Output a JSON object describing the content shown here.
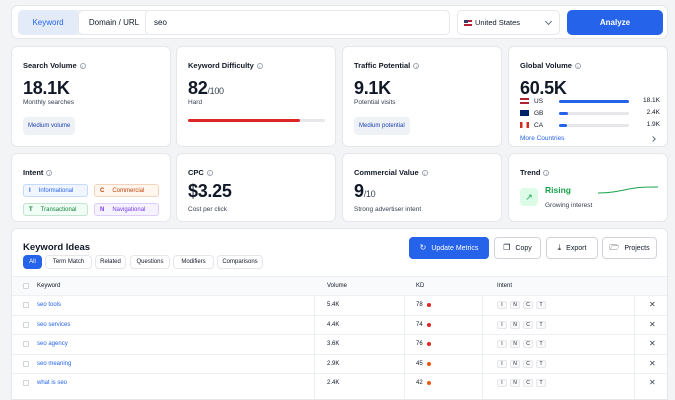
{
  "topbar": {
    "mode_tabs": [
      "Keyword",
      "Domain / URL"
    ],
    "search_value": "seo",
    "country": "United States",
    "analyze_label": "Analyze"
  },
  "search_volume": {
    "title": "Search Volume",
    "value": "18.1K",
    "caption": "Monthly searches",
    "pill": "Medium volume"
  },
  "keyword_difficulty": {
    "title": "Keyword Difficulty",
    "value": "82",
    "max": "/100",
    "label": "Hard",
    "percent": 82
  },
  "traffic_potential": {
    "title": "Traffic Potential",
    "value": "9.1K",
    "caption": "Potential visits",
    "pill": "Medium potential"
  },
  "global_volume": {
    "title": "Global Volume",
    "value": "60.5K",
    "countries": [
      {
        "code": "US",
        "value": "18.1K",
        "share": 1.0
      },
      {
        "code": "GB",
        "value": "2.4K",
        "share": 0.13
      },
      {
        "code": "CA",
        "value": "1.9K",
        "share": 0.11
      }
    ],
    "more_label": "More Countries"
  },
  "intent": {
    "title": "Intent",
    "items": [
      {
        "letter": "I",
        "label": "Informational",
        "color": "#2563eb",
        "bg": "#eff6ff"
      },
      {
        "letter": "C",
        "label": "Commercial",
        "color": "#c2410c",
        "bg": "#fff7ed"
      },
      {
        "letter": "T",
        "label": "Transactional",
        "color": "#15803d",
        "bg": "#f0fdf4"
      },
      {
        "letter": "N",
        "label": "Navigational",
        "color": "#7c3aed",
        "bg": "#f5f3ff"
      }
    ]
  },
  "cpc": {
    "title": "CPC",
    "value": "$3.25",
    "caption": "Cost per click"
  },
  "commercial_value": {
    "title": "Commercial Value",
    "value": "9",
    "max": "/10",
    "caption": "Strong advertiser intent"
  },
  "trend": {
    "title": "Trend",
    "status": "Rising",
    "caption": "Growing interest",
    "icon": "arrow-up-right-icon"
  },
  "keyword_ideas": {
    "title": "Keyword Ideas",
    "tabs": [
      "All",
      "Term Match",
      "Related",
      "Questions",
      "Modifiers",
      "Comparisons"
    ],
    "actions": {
      "update": "Update Metrics",
      "copy": "Copy",
      "export": "Export",
      "projects": "Projects"
    },
    "columns": [
      "Keyword",
      "Volume",
      "KD",
      "Intent"
    ],
    "intent_letters": [
      "I",
      "N",
      "C",
      "T"
    ],
    "rows": [
      {
        "keyword": "seo tools",
        "volume": "5.4K",
        "kd": "78",
        "kd_color": "#dc2626"
      },
      {
        "keyword": "seo services",
        "volume": "4.4K",
        "kd": "74",
        "kd_color": "#dc2626"
      },
      {
        "keyword": "seo agency",
        "volume": "3.6K",
        "kd": "76",
        "kd_color": "#dc2626"
      },
      {
        "keyword": "seo meaning",
        "volume": "2.9K",
        "kd": "45",
        "kd_color": "#ea580c"
      },
      {
        "keyword": "what is seo",
        "volume": "2.4K",
        "kd": "42",
        "kd_color": "#ea580c"
      }
    ]
  }
}
